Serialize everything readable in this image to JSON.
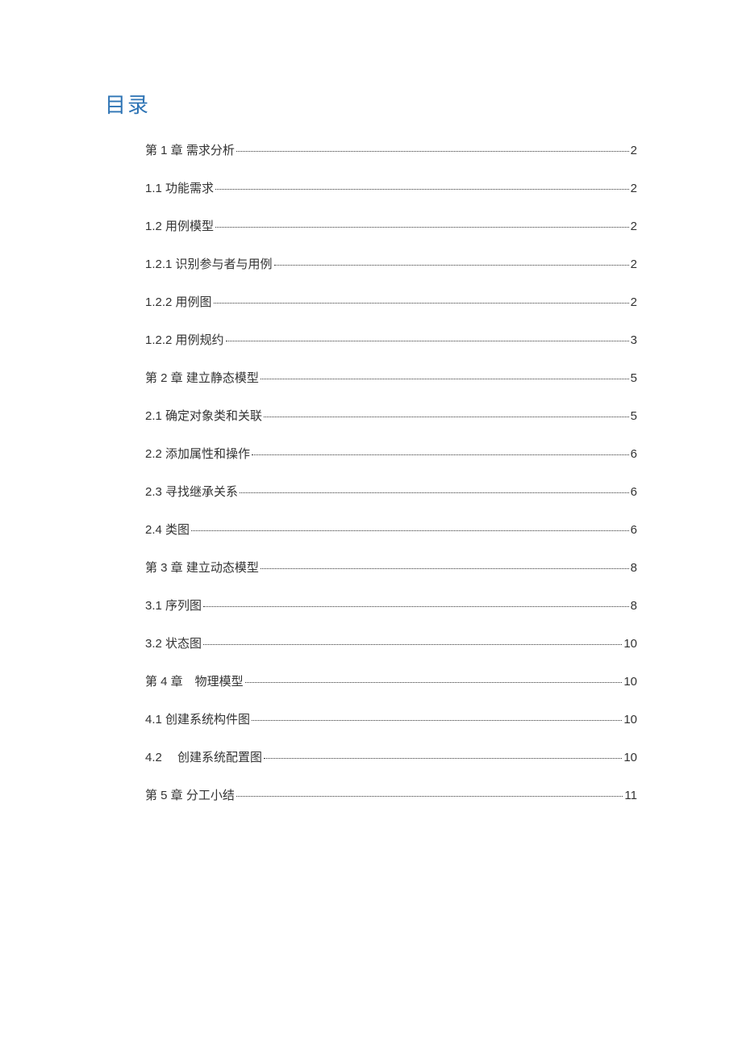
{
  "title": "目录",
  "title_color": "#2e74b5",
  "text_color": "#333333",
  "background_color": "#ffffff",
  "font_size_title": 26,
  "font_size_entry": 15,
  "entries": [
    {
      "label": "第 1 章  需求分析",
      "page": "2"
    },
    {
      "label": "1.1  功能需求",
      "page": "2"
    },
    {
      "label": "1.2  用例模型",
      "page": "2"
    },
    {
      "label": "1.2.1 识别参与者与用例",
      "page": "2"
    },
    {
      "label": "1.2.2 用例图",
      "page": "2"
    },
    {
      "label": "1.2.2 用例规约",
      "page": "3"
    },
    {
      "label": "第 2 章  建立静态模型",
      "page": "5"
    },
    {
      "label": "2.1 确定对象类和关联",
      "page": "5"
    },
    {
      "label": "2.2 添加属性和操作",
      "page": "6"
    },
    {
      "label": "2.3 寻找继承关系",
      "page": "6"
    },
    {
      "label": "2.4 类图",
      "page": "6"
    },
    {
      "label": "第 3 章  建立动态模型",
      "page": "8"
    },
    {
      "label": "3.1 序列图",
      "page": "8"
    },
    {
      "label": "3.2 状态图",
      "page": "10"
    },
    {
      "label": "第 4 章　物理模型",
      "page": "10"
    },
    {
      "label": "4.1  创建系统构件图",
      "page": "10"
    },
    {
      "label": "4.2　 创建系统配置图",
      "page": "10"
    },
    {
      "label": "第 5 章  分工小结",
      "page": "11"
    }
  ]
}
